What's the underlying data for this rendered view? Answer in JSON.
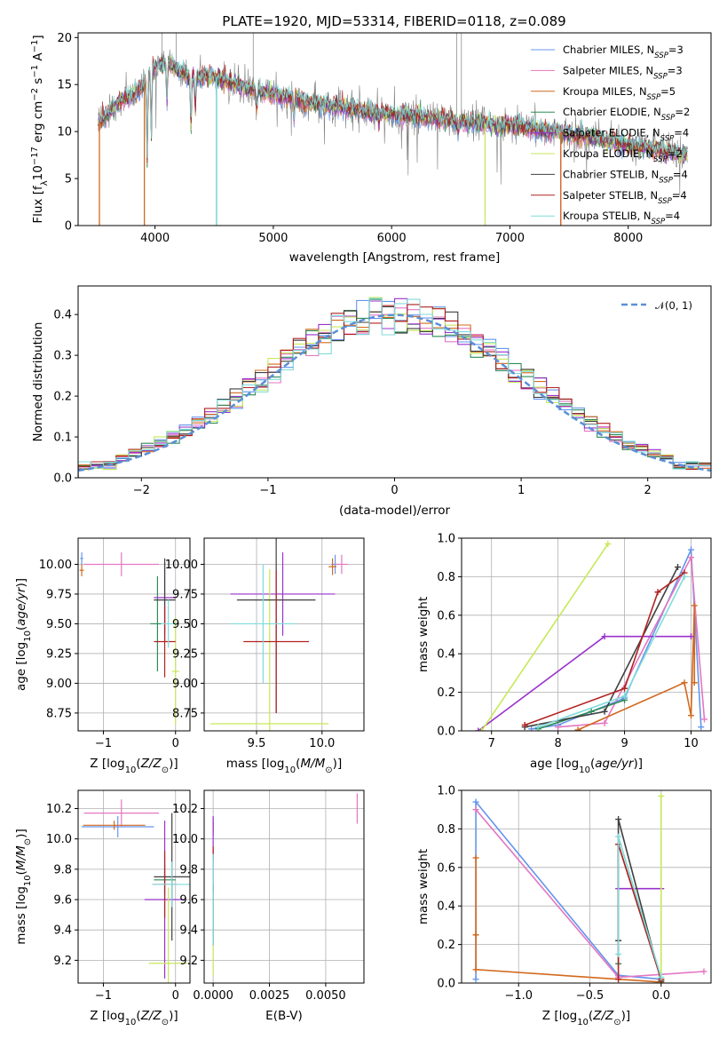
{
  "figure": {
    "title": "PLATE=1920, MJD=53314, FIBERID=0118, z=0.089"
  },
  "models": [
    {
      "name": "Chabrier MILES",
      "nssp": "3",
      "color": "#6495ed"
    },
    {
      "name": "Salpeter MILES",
      "nssp": "3",
      "color": "#e377c2"
    },
    {
      "name": "Kroupa MILES",
      "nssp": "5",
      "color": "#d2691e"
    },
    {
      "name": "Chabrier ELODIE",
      "nssp": "2",
      "color": "#2e8b57"
    },
    {
      "name": "Salpeter ELODIE",
      "nssp": "4",
      "color": "#9932cc"
    },
    {
      "name": "Kroupa ELODIE",
      "nssp": "2",
      "color": "#c7e85a"
    },
    {
      "name": "Chabrier STELIB",
      "nssp": "4",
      "color": "#404040"
    },
    {
      "name": "Salpeter STELIB",
      "nssp": "4",
      "color": "#b22222"
    },
    {
      "name": "Kroupa STELIB",
      "nssp": "4",
      "color": "#7fdbda"
    }
  ],
  "chart_data": [
    {
      "id": "spectrum",
      "type": "line",
      "title": "PLATE=1920, MJD=53314, FIBERID=0118, z=0.089",
      "xlabel": "wavelength [Angstrom, rest frame]",
      "ylabel": "Flux [f_λ 10^-17 erg cm^-2 s^-1 A^-1]",
      "xlim": [
        3350,
        8700
      ],
      "ylim": [
        0,
        20.5
      ],
      "xticks": [
        4000,
        5000,
        6000,
        7000,
        8000
      ],
      "yticks": [
        0,
        5,
        10,
        15,
        20
      ],
      "legend": "top-right",
      "continuum": {
        "x": [
          3520,
          3600,
          3700,
          3800,
          3900,
          4000,
          4100,
          4200,
          4300,
          4500,
          4800,
          5000,
          5300,
          5600,
          6000,
          6300,
          6600,
          7000,
          7300,
          7600,
          8000,
          8300,
          8500
        ],
        "y": [
          11.0,
          11.8,
          13.2,
          13.8,
          14.8,
          17.0,
          17.3,
          16.5,
          15.8,
          15.8,
          14.5,
          14.0,
          13.2,
          12.5,
          11.8,
          11.5,
          11.0,
          10.6,
          10.1,
          9.6,
          8.6,
          7.9,
          7.5
        ]
      },
      "absorption_lines": [
        {
          "x": 3934,
          "depth": 0.55
        },
        {
          "x": 3969,
          "depth": 0.45
        },
        {
          "x": 4101,
          "depth": 0.25
        },
        {
          "x": 4304,
          "depth": 0.35
        },
        {
          "x": 4341,
          "depth": 0.2
        },
        {
          "x": 4861,
          "depth": 0.15
        },
        {
          "x": 5175,
          "depth": 0.15
        },
        {
          "x": 5270,
          "depth": 0.08
        },
        {
          "x": 5893,
          "depth": 0.12
        },
        {
          "x": 6563,
          "depth": 0.1
        }
      ],
      "model_drops": [
        {
          "model": 0,
          "x": 4520,
          "y": 0
        },
        {
          "model": 1,
          "x": 7430,
          "y": 0
        },
        {
          "model": 2,
          "x": 3530,
          "y": 0
        },
        {
          "model": 2,
          "x": 3910,
          "y": 0
        },
        {
          "model": 2,
          "x": 7430,
          "y": 0
        },
        {
          "model": 5,
          "x": 6790,
          "y": 0
        },
        {
          "model": 8,
          "x": 4520,
          "y": 0
        }
      ]
    },
    {
      "id": "residuals",
      "type": "histogram",
      "xlabel": "(data-model)/error",
      "ylabel": "Normed distribution",
      "xlim": [
        -2.5,
        2.5
      ],
      "ylim": [
        0,
        0.47
      ],
      "xticks": [
        -2,
        -1,
        0,
        1,
        2
      ],
      "yticks": [
        0.0,
        0.1,
        0.2,
        0.3,
        0.4
      ],
      "bin_width": 0.1,
      "legend": "top-right",
      "gaussian_label": "𝒩(0, 1)",
      "gaussian_color": "#5b8fd6"
    },
    {
      "id": "age_vs_Z",
      "type": "scatter",
      "xlabel": "Z [log10(Z/Z⊙)]",
      "ylabel": "age [log10(age/yr)]",
      "xlim": [
        -1.35,
        0.2
      ],
      "ylim": [
        8.6,
        10.22
      ],
      "xticks": [
        -1,
        0
      ],
      "yticks": [
        8.75,
        9.0,
        9.25,
        9.5,
        9.75,
        10.0
      ],
      "grid": true,
      "points": [
        {
          "model": 0,
          "x": -1.3,
          "y": 10.05,
          "xerr": 0.02,
          "yerr": 0.05
        },
        {
          "model": 1,
          "x": -0.75,
          "y": 10.0,
          "xerr": 0.52,
          "yerr": 0.1
        },
        {
          "model": 2,
          "x": -1.3,
          "y": 9.95,
          "xerr": 0.03,
          "yerr": 0.05
        },
        {
          "model": 3,
          "x": -0.25,
          "y": 9.5,
          "xerr": 0.1,
          "yerr": 0.4
        },
        {
          "model": 4,
          "x": -0.15,
          "y": 9.72,
          "xerr": 0.15,
          "yerr": 0.3
        },
        {
          "model": 5,
          "x": 0.0,
          "y": 9.1,
          "xerr": 0.05,
          "yerr": 0.45
        },
        {
          "model": 6,
          "x": -0.15,
          "y": 9.7,
          "xerr": 0.15,
          "yerr": 0.35
        },
        {
          "model": 7,
          "x": -0.15,
          "y": 9.35,
          "xerr": 0.15,
          "yerr": 0.3
        },
        {
          "model": 8,
          "x": -0.1,
          "y": 9.5,
          "xerr": 0.1,
          "yerr": 0.2
        }
      ]
    },
    {
      "id": "age_vs_mass",
      "type": "scatter",
      "xlabel": "mass [log10(M/M⊙)]",
      "ylabel": "",
      "xlim": [
        9.1,
        10.32
      ],
      "ylim": [
        8.6,
        10.22
      ],
      "xticks": [
        9.5,
        10.0
      ],
      "yticks": [
        8.75,
        9.0,
        9.25,
        9.5,
        9.75,
        10.0
      ],
      "grid": true,
      "points": [
        {
          "model": 0,
          "x": 10.1,
          "y": 10.0,
          "xerr": 0.03,
          "yerr": 0.08
        },
        {
          "model": 1,
          "x": 10.15,
          "y": 10.0,
          "xerr": 0.05,
          "yerr": 0.08
        },
        {
          "model": 2,
          "x": 10.08,
          "y": 9.98,
          "xerr": 0.03,
          "yerr": 0.07
        },
        {
          "model": 4,
          "x": 9.7,
          "y": 9.75,
          "xerr": 0.4,
          "yerr": 0.35
        },
        {
          "model": 5,
          "x": 9.6,
          "y": 8.66,
          "xerr": 0.45,
          "yerr": 1.3
        },
        {
          "model": 6,
          "x": 9.65,
          "y": 9.7,
          "xerr": 0.3,
          "yerr": 0.95
        },
        {
          "model": 7,
          "x": 9.65,
          "y": 9.35,
          "xerr": 0.25,
          "yerr": 0.6
        },
        {
          "model": 8,
          "x": 9.55,
          "y": 9.5,
          "xerr": 0.25,
          "yerr": 0.5
        }
      ]
    },
    {
      "id": "weight_vs_age",
      "type": "line",
      "xlabel": "age [log10(age/yr)]",
      "ylabel": "mass weight",
      "xlim": [
        6.55,
        10.3
      ],
      "ylim": [
        0,
        1.0
      ],
      "xticks": [
        7,
        8,
        9,
        10
      ],
      "yticks": [
        0.0,
        0.2,
        0.4,
        0.6,
        0.8,
        1.0
      ],
      "grid": true,
      "series": [
        {
          "model": 0,
          "x": [
            7.6,
            8.0,
            9.0,
            10.0,
            10.15
          ],
          "y": [
            0.01,
            0.03,
            0.17,
            0.94,
            0.02
          ]
        },
        {
          "model": 1,
          "x": [
            8.0,
            8.7,
            10.0,
            10.2
          ],
          "y": [
            0.02,
            0.04,
            0.9,
            0.06
          ]
        },
        {
          "model": 2,
          "x": [
            8.3,
            9.9,
            10.0,
            10.05,
            10.05
          ],
          "y": [
            0.005,
            0.25,
            0.08,
            0.65,
            0.25
          ]
        },
        {
          "model": 3,
          "x": [
            7.7,
            8.5,
            9.0
          ],
          "y": [
            0.01,
            0.1,
            0.16
          ]
        },
        {
          "model": 4,
          "x": [
            6.8,
            8.7,
            10.0
          ],
          "y": [
            0.0,
            0.49,
            0.49
          ]
        },
        {
          "model": 5,
          "x": [
            6.85,
            8.75
          ],
          "y": [
            0.0,
            0.97
          ]
        },
        {
          "model": 6,
          "x": [
            7.5,
            8.7,
            9.8
          ],
          "y": [
            0.02,
            0.1,
            0.85
          ]
        },
        {
          "model": 7,
          "x": [
            7.5,
            9.0,
            9.5,
            9.9
          ],
          "y": [
            0.03,
            0.22,
            0.72,
            0.82
          ]
        },
        {
          "model": 8,
          "x": [
            7.7,
            9.0,
            9.9
          ],
          "y": [
            0.02,
            0.18,
            0.8
          ]
        }
      ]
    },
    {
      "id": "mass_vs_Z",
      "type": "scatter",
      "xlabel": "Z [log10(Z/Z⊙)]",
      "ylabel": "mass [log10(M/M⊙)]",
      "xlim": [
        -1.35,
        0.2
      ],
      "ylim": [
        9.05,
        10.32
      ],
      "xticks": [
        -1,
        0
      ],
      "yticks": [
        9.2,
        9.4,
        9.6,
        9.8,
        10.0,
        10.2
      ],
      "grid": true,
      "points": [
        {
          "model": 0,
          "x": -0.8,
          "y": 10.08,
          "xerr": 0.5,
          "yerr": 0.07
        },
        {
          "model": 1,
          "x": -0.75,
          "y": 10.17,
          "xerr": 0.52,
          "yerr": 0.09
        },
        {
          "model": 2,
          "x": -0.85,
          "y": 10.09,
          "xerr": 0.43,
          "yerr": 0.03
        },
        {
          "model": 3,
          "x": -0.15,
          "y": 9.73,
          "xerr": 0.15,
          "yerr": 0.1
        },
        {
          "model": 4,
          "x": -0.15,
          "y": 9.6,
          "xerr": 0.28,
          "yerr": 0.52
        },
        {
          "model": 5,
          "x": -0.1,
          "y": 9.18,
          "xerr": 0.27,
          "yerr": 0.5
        },
        {
          "model": 6,
          "x": -0.05,
          "y": 9.75,
          "xerr": 0.25,
          "yerr": 0.42
        },
        {
          "model": 7,
          "x": -0.15,
          "y": 9.7,
          "xerr": 0.17,
          "yerr": 0.22
        },
        {
          "model": 8,
          "x": -0.05,
          "y": 9.7,
          "xerr": 0.27,
          "yerr": 0.15
        }
      ]
    },
    {
      "id": "mass_vs_ebv",
      "type": "scatter",
      "xlabel": "E(B-V)",
      "ylabel": "",
      "xlim": [
        -0.0004,
        0.0067
      ],
      "ylim": [
        9.05,
        10.32
      ],
      "xticks": [
        0.0,
        0.0025,
        0.005
      ],
      "xticklabels": [
        "0.0000",
        "0.0025",
        "0.0050"
      ],
      "yticks": [
        9.2,
        9.4,
        9.6,
        9.8,
        10.0,
        10.2
      ],
      "grid": true,
      "points": [
        {
          "model": 0,
          "x": 0.0,
          "y": 10.08,
          "xerr": 0.0,
          "yerr": 0.06
        },
        {
          "model": 1,
          "x": 0.0064,
          "y": 10.2,
          "xerr": 0.0,
          "yerr": 0.1
        },
        {
          "model": 2,
          "x": 0.0,
          "y": 10.08,
          "xerr": 0.0,
          "yerr": 0.03
        },
        {
          "model": 4,
          "x": 0.0,
          "y": 9.9,
          "xerr": 0.0,
          "yerr": 0.25
        },
        {
          "model": 5,
          "x": 0.0,
          "y": 9.2,
          "xerr": 0.0,
          "yerr": 0.1
        },
        {
          "model": 6,
          "x": 0.0,
          "y": 9.5,
          "xerr": 0.0,
          "yerr": 0.2
        },
        {
          "model": 7,
          "x": 0.0,
          "y": 9.9,
          "xerr": 0.0,
          "yerr": 0.05
        },
        {
          "model": 8,
          "x": 0.0,
          "y": 9.6,
          "xerr": 0.0,
          "yerr": 0.3
        }
      ]
    },
    {
      "id": "weight_vs_Z",
      "type": "line",
      "xlabel": "Z [log10(Z/Z⊙)]",
      "ylabel": "mass weight",
      "xlim": [
        -1.4,
        0.35
      ],
      "ylim": [
        0,
        1.0
      ],
      "xticks": [
        -1.0,
        -0.5,
        0.0
      ],
      "yticks": [
        0.0,
        0.2,
        0.4,
        0.6,
        0.8,
        1.0
      ],
      "grid": true,
      "series": [
        {
          "model": 0,
          "x": [
            -1.3,
            -1.3,
            -0.3,
            0.0
          ],
          "y": [
            0.02,
            0.94,
            0.04,
            0.02
          ]
        },
        {
          "model": 1,
          "x": [
            -1.3,
            -0.3,
            0.3
          ],
          "y": [
            0.9,
            0.03,
            0.06
          ]
        },
        {
          "model": 2,
          "x": [
            -1.3,
            -1.3,
            -1.3,
            -0.3,
            0.0
          ],
          "y": [
            0.25,
            0.65,
            0.07,
            0.02,
            0.005
          ]
        },
        {
          "model": 3,
          "x": [
            -0.3,
            -0.3,
            0.0
          ],
          "y": [
            0.1,
            0.72,
            0.02
          ]
        },
        {
          "model": 4,
          "x": [
            -0.3,
            0.0
          ],
          "y": [
            0.49,
            0.49
          ]
        },
        {
          "model": 5,
          "x": [
            0.0,
            0.0
          ],
          "y": [
            0.0,
            0.97
          ]
        },
        {
          "model": 6,
          "x": [
            -0.3,
            -0.3,
            0.0
          ],
          "y": [
            0.22,
            0.85,
            0.01
          ]
        },
        {
          "model": 7,
          "x": [
            -0.3,
            -0.3,
            0.0
          ],
          "y": [
            0.02,
            0.72,
            0.02
          ]
        },
        {
          "model": 8,
          "x": [
            -0.3,
            -0.3,
            0.0
          ],
          "y": [
            0.15,
            0.76,
            0.03
          ]
        }
      ]
    }
  ]
}
